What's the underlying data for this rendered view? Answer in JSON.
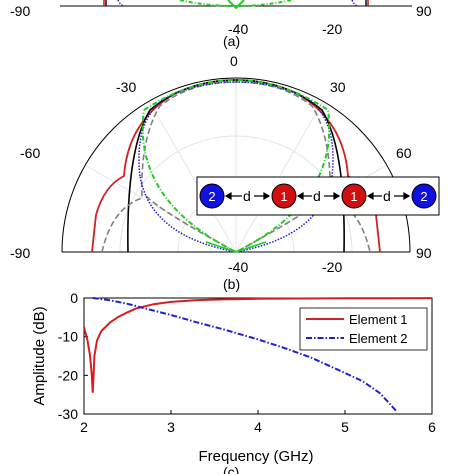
{
  "panel_a": {
    "caption": "(a)",
    "angle_labels": {
      "left": "-90",
      "right": "90"
    },
    "radial_labels": [
      "-40",
      "-20"
    ]
  },
  "panel_b": {
    "caption": "(b)",
    "angle_labels": {
      "top": "0",
      "upper_left": "-30",
      "upper_right": "30",
      "left_mid": "-60",
      "right_mid": "60",
      "left": "-90",
      "right": "90"
    },
    "radial_labels": [
      "-40",
      "-20"
    ],
    "array_inset": {
      "elements": [
        "2",
        "1",
        "1",
        "2"
      ],
      "spacing_label": "d",
      "colors": {
        "outer": "#1010e0",
        "inner": "#d01010"
      }
    }
  },
  "panel_c": {
    "caption": "(c)"
  },
  "colors": {
    "red": "#d42020",
    "blue": "#1f1fd0",
    "green": "#22cc22",
    "black": "#000000",
    "gray": "#808080"
  },
  "chart_data": {
    "type": "line",
    "xlabel": "Frequency (GHz)",
    "ylabel": "Amplitude (dB)",
    "xlim": [
      2,
      6
    ],
    "ylim": [
      -30,
      0
    ],
    "xticks": [
      "2",
      "3",
      "4",
      "5",
      "6"
    ],
    "yticks": [
      "0",
      "-10",
      "-20",
      "-30"
    ],
    "legend_position": "top-right",
    "series": [
      {
        "name": "Element 1",
        "color": "#d42020",
        "style": "solid",
        "x": [
          2,
          2.04,
          2.07,
          2.09,
          2.1,
          2.11,
          2.12,
          2.15,
          2.2,
          2.3,
          2.4,
          2.5,
          2.6,
          2.8,
          3,
          3.3,
          3.6,
          4,
          4.5,
          5,
          5.5,
          6
        ],
        "y": [
          -7.5,
          -11,
          -15,
          -20,
          -24.5,
          -20,
          -15,
          -11,
          -8.5,
          -6.3,
          -4.8,
          -3.7,
          -2.7,
          -1.6,
          -1,
          -0.55,
          -0.35,
          -0.2,
          -0.12,
          -0.07,
          -0.04,
          -0.02
        ]
      },
      {
        "name": "Element 2",
        "color": "#1f1fd0",
        "style": "dashdot",
        "x": [
          2.1,
          2.3,
          2.5,
          2.7,
          3,
          3.3,
          3.6,
          4,
          4.3,
          4.6,
          5,
          5.2,
          5.4,
          5.5,
          5.6
        ],
        "y": [
          0,
          -0.6,
          -1.5,
          -2.7,
          -4.4,
          -6.3,
          -8.1,
          -10.7,
          -12.9,
          -15.3,
          -19.4,
          -21.5,
          -24.6,
          -27,
          -29.5
        ]
      }
    ]
  }
}
